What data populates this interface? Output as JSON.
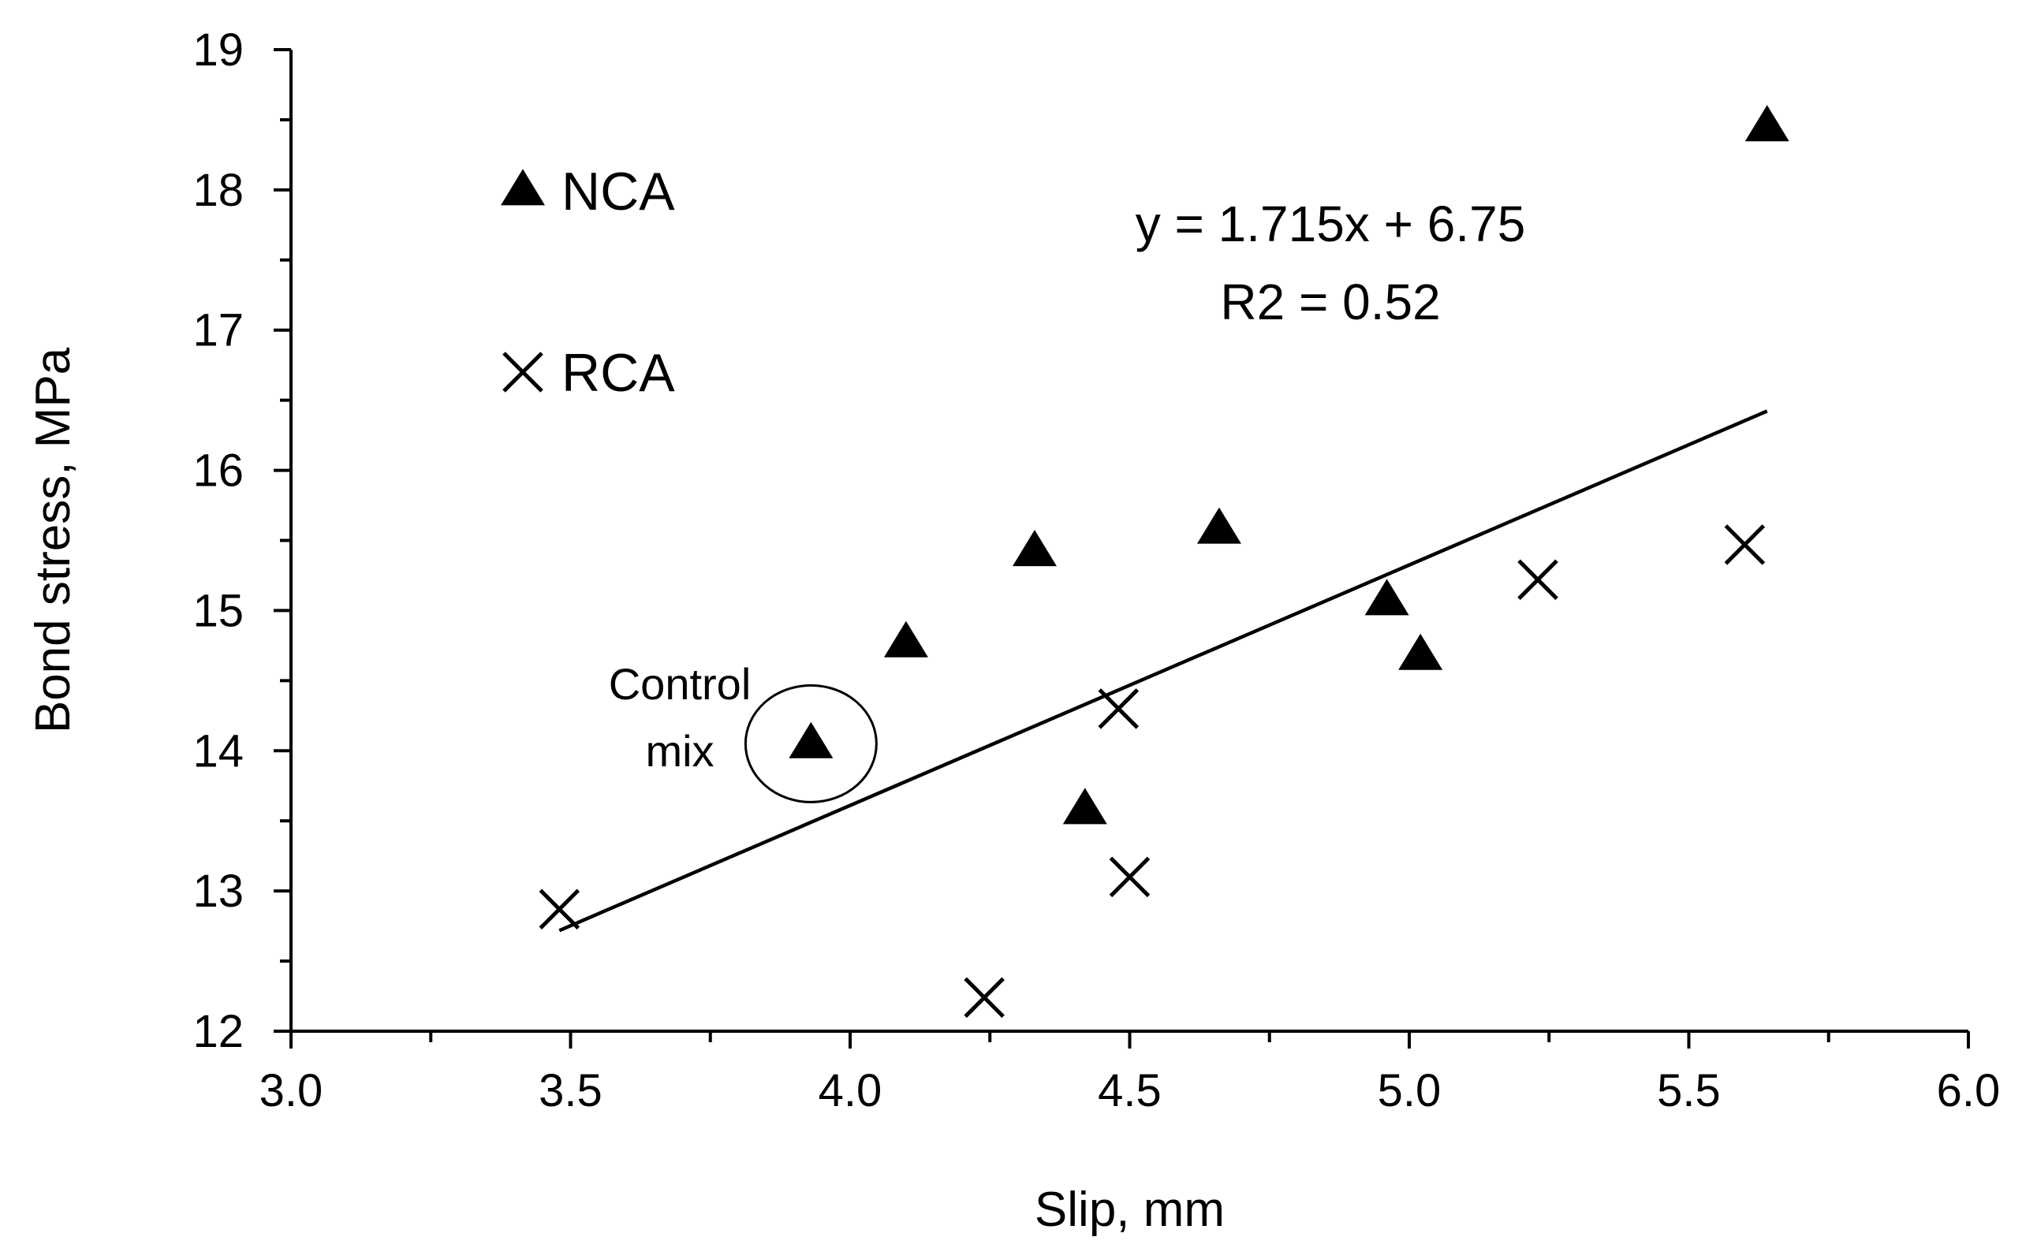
{
  "chart_data": {
    "type": "scatter",
    "title": "",
    "xlabel": "Slip, mm",
    "ylabel": "Bond stress, MPa",
    "xlim": [
      3.0,
      6.0
    ],
    "ylim": [
      12,
      19
    ],
    "x_ticks": [
      "3.0",
      "3.5",
      "4.0",
      "4.5",
      "5.0",
      "5.5",
      "6.0"
    ],
    "y_ticks": [
      "12",
      "13",
      "14",
      "15",
      "16",
      "17",
      "18",
      "19"
    ],
    "grid": false,
    "legend_position": "top-left",
    "series": [
      {
        "name": "NCA",
        "marker": "triangle",
        "x": [
          3.93,
          4.1,
          4.33,
          4.42,
          4.66,
          4.96,
          5.02,
          5.64
        ],
        "y": [
          14.05,
          14.77,
          15.42,
          13.58,
          15.58,
          15.07,
          14.68,
          18.45
        ]
      },
      {
        "name": "RCA",
        "marker": "x",
        "x": [
          3.48,
          4.24,
          4.48,
          4.5,
          5.23,
          5.6
        ],
        "y": [
          12.87,
          12.24,
          14.3,
          13.1,
          15.22,
          15.47
        ]
      }
    ],
    "trendline": {
      "x_start": 3.48,
      "x_end": 5.64,
      "slope": 1.715,
      "intercept": 6.75,
      "equation": "y = 1.715x + 6.75",
      "r2": "R2 = 0.52"
    },
    "annotations": [
      {
        "lines": [
          "Control",
          "mix"
        ],
        "target_x": 3.93,
        "target_y": 14.05
      }
    ]
  }
}
